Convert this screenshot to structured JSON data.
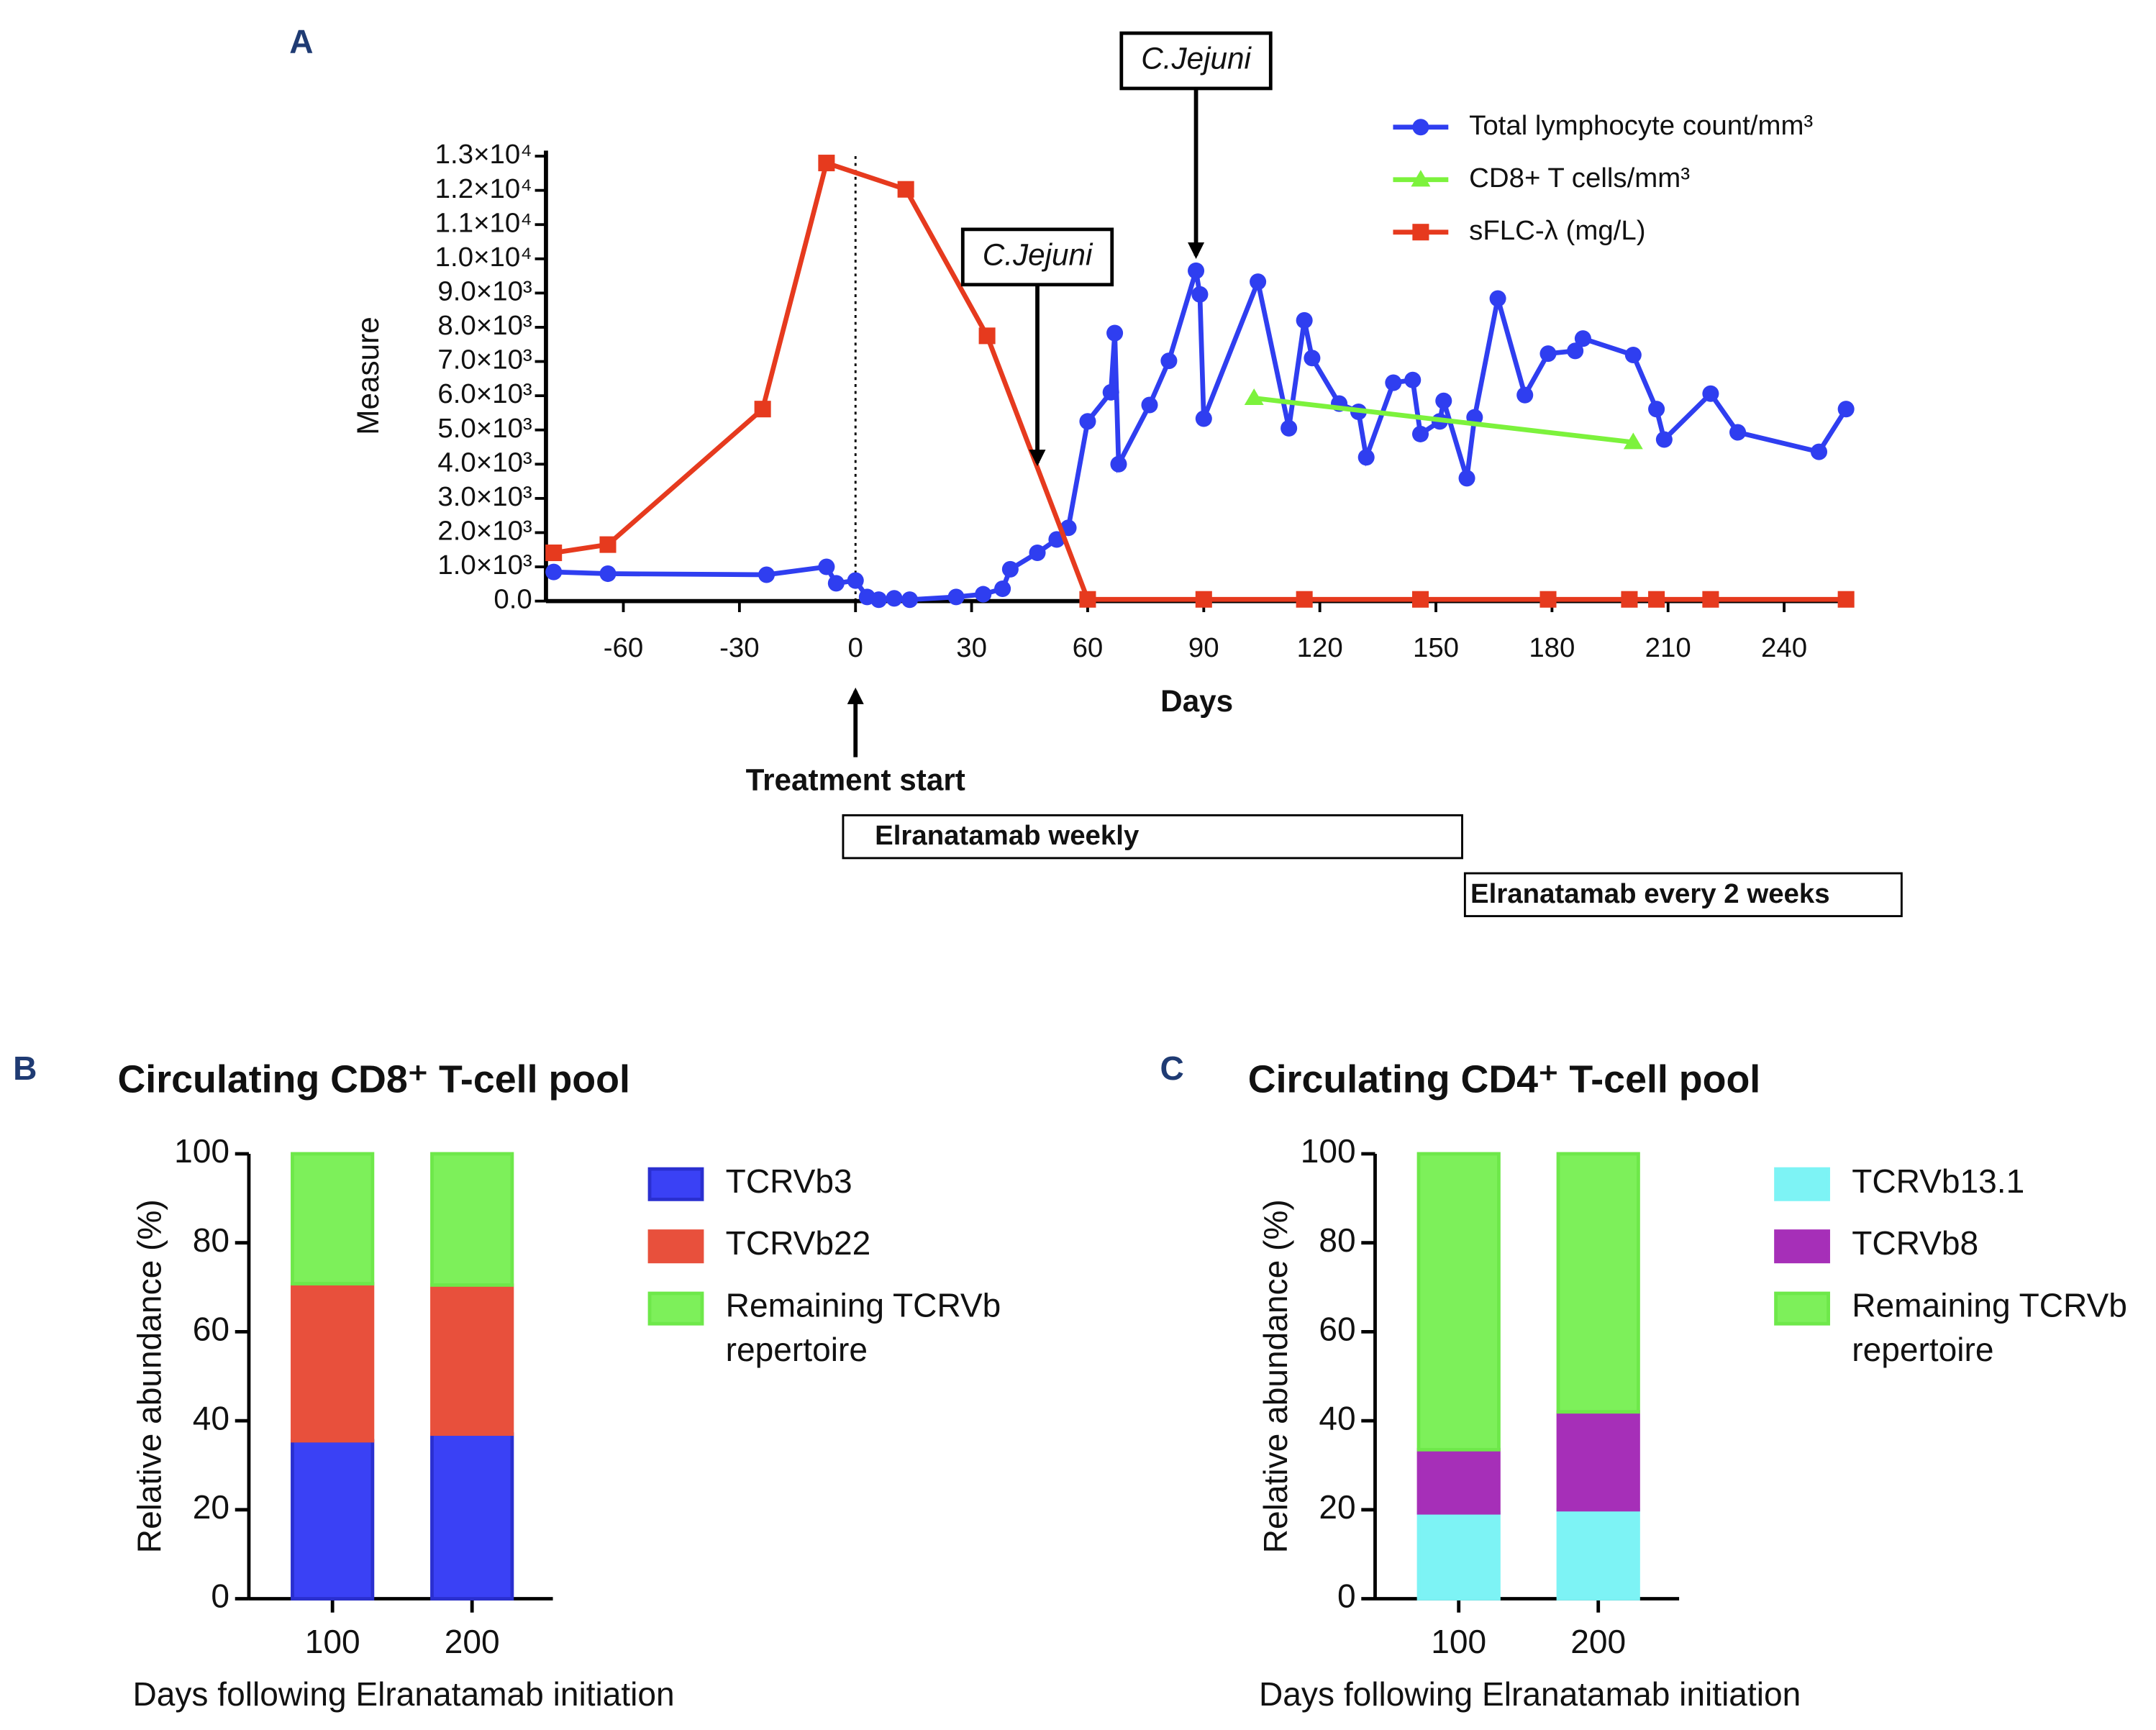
{
  "chart_data": [
    {
      "type": "line",
      "panel": "A",
      "y_label": "Measure",
      "x_label": "Days",
      "xlim": [
        -80,
        257.5
      ],
      "ylim": [
        0,
        13000
      ],
      "xticks": [
        -60,
        -30,
        0,
        30,
        60,
        90,
        120,
        150,
        180,
        210,
        240
      ],
      "yticks": [
        {
          "value": 0,
          "label": "0.0"
        },
        {
          "value": 1000,
          "label": "1.0×10³"
        },
        {
          "value": 2000,
          "label": "2.0×10³"
        },
        {
          "value": 3000,
          "label": "3.0×10³"
        },
        {
          "value": 4000,
          "label": "4.0×10³"
        },
        {
          "value": 5000,
          "label": "5.0×10³"
        },
        {
          "value": 6000,
          "label": "6.0×10³"
        },
        {
          "value": 7000,
          "label": "7.0×10³"
        },
        {
          "value": 8000,
          "label": "8.0×10³"
        },
        {
          "value": 9000,
          "label": "9.0×10³"
        },
        {
          "value": 10000,
          "label": "1.0×10⁴"
        },
        {
          "value": 11000,
          "label": "1.1×10⁴"
        },
        {
          "value": 12000,
          "label": "1.2×10⁴"
        },
        {
          "value": 13000,
          "label": "1.3×10⁴"
        }
      ],
      "vline_x": 0,
      "series": [
        {
          "name": "Total lymphocyte count/mm³",
          "color": "#2f3ef0",
          "marker": "circle",
          "x": [
            -78,
            -64,
            -23,
            -7.5,
            -5,
            0,
            3,
            6,
            10,
            14,
            26,
            33,
            38,
            40,
            47,
            52,
            55,
            60,
            66,
            67,
            68,
            76,
            81,
            88,
            89,
            90,
            104,
            112,
            116,
            118,
            125,
            130,
            132,
            139,
            144,
            146,
            151,
            152,
            158,
            160,
            166,
            173,
            179,
            186,
            188,
            201,
            207,
            209,
            221,
            228,
            249,
            256
          ],
          "values": [
            850,
            800,
            770,
            1000,
            520,
            600,
            120,
            40,
            80,
            40,
            120,
            200,
            360,
            930,
            1410,
            1800,
            2140,
            5250,
            6100,
            7830,
            4000,
            5730,
            7020,
            9650,
            8960,
            5330,
            9330,
            5050,
            8200,
            7100,
            5770,
            5530,
            4200,
            6380,
            6460,
            4880,
            5250,
            5850,
            3590,
            5370,
            8840,
            6020,
            7230,
            7310,
            7670,
            7190,
            5610,
            4720,
            6060,
            4930,
            4360,
            5610
          ]
        },
        {
          "name": "CD8+ T cells/mm³",
          "color": "#7cf23c",
          "marker": "triangle",
          "x": [
            103,
            201
          ],
          "values": [
            5930,
            4640
          ]
        },
        {
          "name": "sFLC-λ (mg/L)",
          "color": "#e63a1e",
          "marker": "square",
          "x": [
            -78,
            -64,
            -24,
            -7.5,
            13,
            34,
            60,
            90,
            116,
            146,
            179,
            200,
            207,
            221,
            256
          ],
          "values": [
            1410,
            1650,
            5610,
            12800,
            12030,
            7750,
            50,
            50,
            50,
            50,
            50,
            50,
            50,
            50,
            50
          ]
        }
      ],
      "annotations": [
        {
          "text": "C.Jejuni",
          "x": 47
        },
        {
          "text": "C.Jejuni",
          "x": 88
        },
        {
          "text": "Treatment start",
          "x": 0
        }
      ],
      "regimens": [
        "Elranatamab weekly",
        "Elranatamab every 2 weeks"
      ]
    },
    {
      "type": "stacked_bar",
      "panel": "B",
      "title": "Circulating CD8⁺ T-cell pool",
      "y_label": "Relative abundance (%)",
      "x_label": "Days following Elranatamab initiation",
      "categories": [
        "100",
        "200"
      ],
      "ylim": [
        0,
        100
      ],
      "yticks": [
        0,
        20,
        40,
        60,
        80,
        100
      ],
      "series": [
        {
          "name": "TCRVb3",
          "color": "#3a41f5",
          "stroke": "#2a2fd0",
          "values": [
            35.5,
            37
          ]
        },
        {
          "name": "TCRVb22",
          "color": "#e8503c",
          "stroke": "#e8503c",
          "values": [
            35.3,
            33.5
          ]
        },
        {
          "name": "Remaining TCRVb repertoire",
          "color": "#7df05a",
          "stroke": "#6ee84a",
          "values": [
            29.2,
            29.5
          ]
        }
      ]
    },
    {
      "type": "stacked_bar",
      "panel": "C",
      "title": "Circulating CD4⁺ T-cell pool",
      "y_label": "Relative abundance (%)",
      "x_label": "Days following Elranatamab initiation",
      "categories": [
        "100",
        "200"
      ],
      "ylim": [
        0,
        100
      ],
      "yticks": [
        0,
        20,
        40,
        60,
        80,
        100
      ],
      "series": [
        {
          "name": "TCRVb13.1",
          "color": "#7df3f5",
          "stroke": "#7df3f5",
          "values": [
            19.3,
            20
          ]
        },
        {
          "name": "TCRVb8",
          "color": "#a62fb8",
          "stroke": "#a62fb8",
          "values": [
            14.2,
            22
          ]
        },
        {
          "name": "Remaining TCRVb repertoire",
          "color": "#7df05a",
          "stroke": "#6ee84a",
          "values": [
            66.5,
            58
          ]
        }
      ]
    }
  ]
}
